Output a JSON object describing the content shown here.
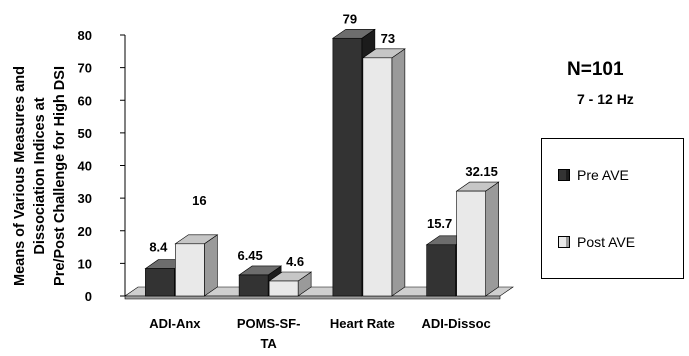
{
  "chart_data": {
    "type": "bar",
    "ylabel": [
      "Means of Various Measures and",
      "Dissociation Indices at",
      "Pre/Post Challenge for High DSI"
    ],
    "ylim": [
      0,
      80
    ],
    "yticks": [
      0,
      10,
      20,
      30,
      40,
      50,
      60,
      70,
      80
    ],
    "categories": [
      [
        "ADI-Anx"
      ],
      [
        "POMS-SF-",
        "TA"
      ],
      [
        "Heart Rate"
      ],
      [
        "ADI-Dissoc"
      ]
    ],
    "series": [
      {
        "name": "Pre AVE",
        "values": [
          8.4,
          6.45,
          79,
          15.7
        ],
        "labels": [
          "8.4",
          "6.45",
          "79",
          "15.7"
        ]
      },
      {
        "name": "Post AVE",
        "values": [
          16,
          4.6,
          73,
          32.15
        ],
        "labels": [
          "16",
          "4.6",
          "73",
          "32.15"
        ]
      }
    ],
    "grid": false,
    "legend_position": "right",
    "annotations": {
      "n": "N=101",
      "freq": "7 - 12 Hz"
    }
  },
  "colors": {
    "pre": {
      "front": "#333333",
      "side": "#1c1c1c",
      "top": "#6d6d6d"
    },
    "post": {
      "front": "#e9e9e9",
      "side": "#9a9a9a",
      "top": "#c6c6c6"
    },
    "floor": {
      "top": "#cfcfcf",
      "front": "#9d9d9d"
    }
  }
}
